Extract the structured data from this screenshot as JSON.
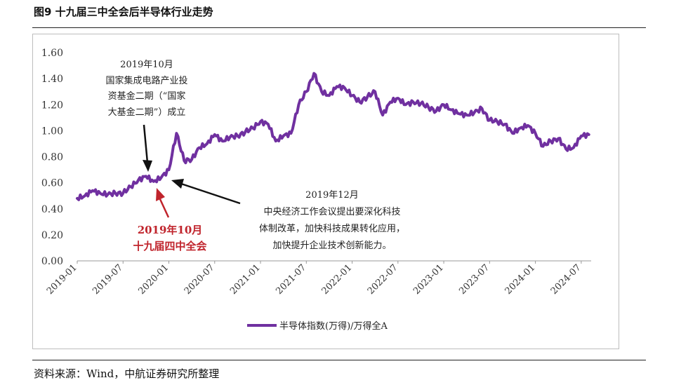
{
  "header": {
    "title": "图9  十九届三中全会后半导体行业走势"
  },
  "footer": {
    "source": "资料来源：Wind，中航证券研究所整理"
  },
  "chart_data": {
    "type": "line",
    "ylim": [
      0,
      1.6
    ],
    "y_ticks": [
      "1.60",
      "1.40",
      "1.20",
      "1.00",
      "0.80",
      "0.60",
      "0.40",
      "0.20",
      "0.00"
    ],
    "y_tick_values": [
      1.6,
      1.4,
      1.2,
      1.0,
      0.8,
      0.6,
      0.4,
      0.2,
      0.0
    ],
    "x_ticks": [
      "2019-01",
      "2019-07",
      "2020-01",
      "2020-07",
      "2021-01",
      "2021-07",
      "2022-01",
      "2022-07",
      "2023-01",
      "2023-07",
      "2024-01",
      "2024-07"
    ],
    "x_range": [
      "2019-01",
      "2024-07"
    ],
    "grid": false,
    "legend_position": "bottom",
    "series": [
      {
        "name": "半导体指数(万得)/万得全A",
        "color": "#7030a0",
        "points": [
          [
            "2019-01",
            0.48
          ],
          [
            "2019-02",
            0.5
          ],
          [
            "2019-03",
            0.54
          ],
          [
            "2019-04",
            0.52
          ],
          [
            "2019-05",
            0.51
          ],
          [
            "2019-06",
            0.52
          ],
          [
            "2019-07",
            0.52
          ],
          [
            "2019-08",
            0.57
          ],
          [
            "2019-09",
            0.62
          ],
          [
            "2019-10",
            0.65
          ],
          [
            "2019-11",
            0.61
          ],
          [
            "2019-12",
            0.64
          ],
          [
            "2020-01",
            0.7
          ],
          [
            "2020-02",
            0.98
          ],
          [
            "2020-03",
            0.77
          ],
          [
            "2020-04",
            0.78
          ],
          [
            "2020-05",
            0.87
          ],
          [
            "2020-06",
            0.9
          ],
          [
            "2020-07",
            0.97
          ],
          [
            "2020-08",
            0.92
          ],
          [
            "2020-09",
            0.95
          ],
          [
            "2020-10",
            0.96
          ],
          [
            "2020-11",
            0.99
          ],
          [
            "2020-12",
            1.02
          ],
          [
            "2021-01",
            1.07
          ],
          [
            "2021-02",
            1.05
          ],
          [
            "2021-03",
            0.92
          ],
          [
            "2021-04",
            0.96
          ],
          [
            "2021-05",
            0.98
          ],
          [
            "2021-06",
            1.2
          ],
          [
            "2021-07",
            1.3
          ],
          [
            "2021-08",
            1.44
          ],
          [
            "2021-09",
            1.3
          ],
          [
            "2021-10",
            1.27
          ],
          [
            "2021-11",
            1.34
          ],
          [
            "2021-12",
            1.33
          ],
          [
            "2022-01",
            1.27
          ],
          [
            "2022-02",
            1.22
          ],
          [
            "2022-03",
            1.26
          ],
          [
            "2022-04",
            1.3
          ],
          [
            "2022-05",
            1.12
          ],
          [
            "2022-06",
            1.22
          ],
          [
            "2022-07",
            1.25
          ],
          [
            "2022-08",
            1.2
          ],
          [
            "2022-09",
            1.22
          ],
          [
            "2022-10",
            1.21
          ],
          [
            "2022-11",
            1.18
          ],
          [
            "2022-12",
            1.15
          ],
          [
            "2023-01",
            1.2
          ],
          [
            "2023-02",
            1.16
          ],
          [
            "2023-03",
            1.13
          ],
          [
            "2023-04",
            1.12
          ],
          [
            "2023-05",
            1.14
          ],
          [
            "2023-06",
            1.17
          ],
          [
            "2023-07",
            1.08
          ],
          [
            "2023-08",
            1.07
          ],
          [
            "2023-09",
            1.05
          ],
          [
            "2023-10",
            0.98
          ],
          [
            "2023-11",
            1.02
          ],
          [
            "2023-12",
            1.04
          ],
          [
            "2024-01",
            0.98
          ],
          [
            "2024-02",
            0.88
          ],
          [
            "2024-03",
            0.92
          ],
          [
            "2024-04",
            0.94
          ],
          [
            "2024-05",
            0.86
          ],
          [
            "2024-06",
            0.87
          ],
          [
            "2024-07",
            0.96
          ],
          [
            "2024-08",
            0.97
          ]
        ]
      }
    ],
    "annotations": [
      {
        "lines": [
          "2019年10月",
          "国家集成电路产业投",
          "资基金二期（“国家",
          "大基金二期”）成立"
        ],
        "style": "normal"
      },
      {
        "lines": [
          "2019年12月",
          "中央经济工作会议提出要深化科技",
          "体制改革，加快科技成果转化应用，",
          "加快提升企业技术创新能力。"
        ],
        "style": "normal"
      },
      {
        "lines": [
          "2019年10月",
          "十九届四中全会"
        ],
        "style": "red"
      }
    ]
  }
}
